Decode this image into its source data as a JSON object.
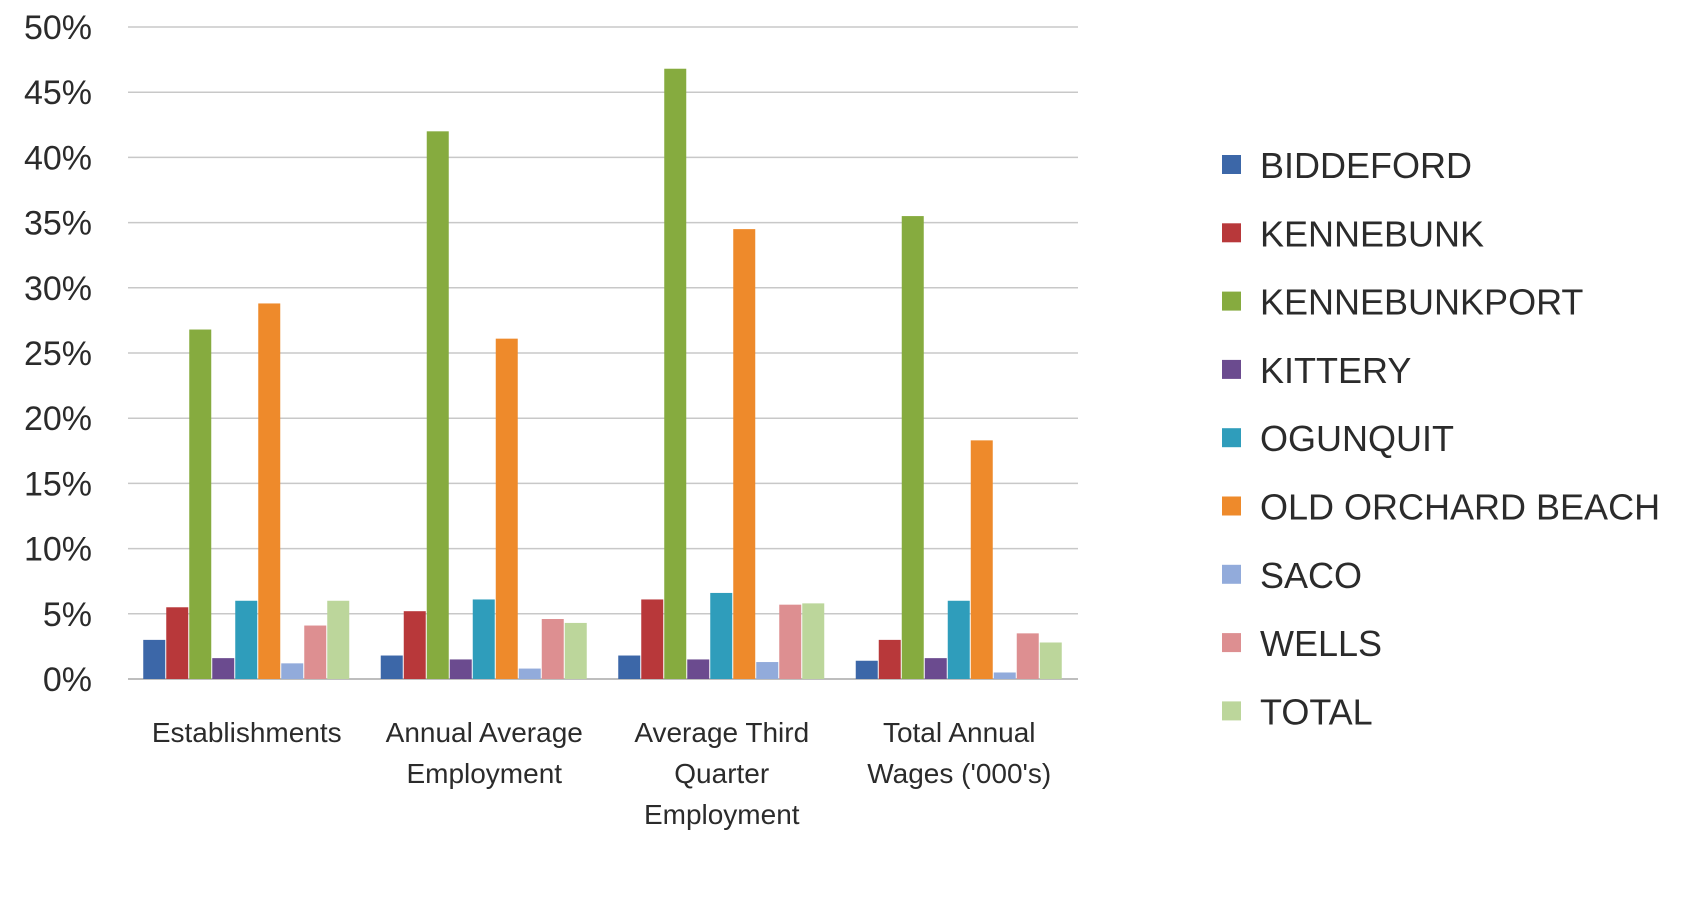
{
  "chart_data": {
    "type": "bar",
    "title": "",
    "xlabel": "",
    "ylabel": "",
    "ylim": [
      0,
      0.5
    ],
    "yticks": [
      {
        "value": 0,
        "label": "0%"
      },
      {
        "value": 0.05,
        "label": "5%"
      },
      {
        "value": 0.1,
        "label": "10%"
      },
      {
        "value": 0.15,
        "label": "15%"
      },
      {
        "value": 0.2,
        "label": "20%"
      },
      {
        "value": 0.25,
        "label": "25%"
      },
      {
        "value": 0.3,
        "label": "30%"
      },
      {
        "value": 0.35,
        "label": "35%"
      },
      {
        "value": 0.4,
        "label": "40%"
      },
      {
        "value": 0.45,
        "label": "45%"
      },
      {
        "value": 0.5,
        "label": "50%"
      }
    ],
    "grid": true,
    "legend_position": "right",
    "categories": [
      [
        "Establishments"
      ],
      [
        "Annual Average",
        "Employment"
      ],
      [
        "Average Third",
        "Quarter",
        "Employment"
      ],
      [
        "Total Annual",
        "Wages ('000's)"
      ]
    ],
    "series": [
      {
        "name": "BIDDEFORD",
        "color": "#3c67a8",
        "values": [
          0.03,
          0.018,
          0.018,
          0.014
        ]
      },
      {
        "name": "KENNEBUNK",
        "color": "#b8383a",
        "values": [
          0.055,
          0.052,
          0.061,
          0.03
        ]
      },
      {
        "name": "KENNEBUNKPORT",
        "color": "#86ab3f",
        "values": [
          0.268,
          0.42,
          0.468,
          0.355
        ]
      },
      {
        "name": "KITTERY",
        "color": "#6b4b8f",
        "values": [
          0.016,
          0.015,
          0.015,
          0.016
        ]
      },
      {
        "name": "OGUNQUIT",
        "color": "#2f9dbb",
        "values": [
          0.06,
          0.061,
          0.066,
          0.06
        ]
      },
      {
        "name": "OLD ORCHARD BEACH",
        "color": "#ee8a2b",
        "values": [
          0.288,
          0.261,
          0.345,
          0.183
        ]
      },
      {
        "name": "SACO",
        "color": "#92abdb",
        "values": [
          0.012,
          0.008,
          0.013,
          0.005
        ]
      },
      {
        "name": "WELLS",
        "color": "#dd8f91",
        "values": [
          0.041,
          0.046,
          0.057,
          0.035
        ]
      },
      {
        "name": "TOTAL",
        "color": "#bcd69b",
        "values": [
          0.06,
          0.043,
          0.058,
          0.028
        ]
      }
    ]
  }
}
